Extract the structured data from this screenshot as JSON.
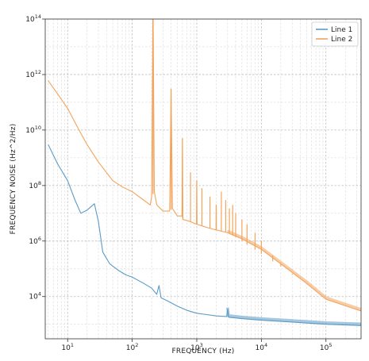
{
  "chart_data": {
    "type": "line",
    "xlabel": "FREQUENCY (Hz)",
    "ylabel": "FREQUENCY NOISE (Hz^2/Hz)",
    "x_scale": "log",
    "y_scale": "log",
    "xlim": [
      4.5,
      350000
    ],
    "ylim": [
      300,
      100000000000000
    ],
    "grid": true,
    "legend_position": "top-right",
    "x_ticks": [
      {
        "value": 10,
        "label": "10",
        "exp": "1"
      },
      {
        "value": 100,
        "label": "10",
        "exp": "2"
      },
      {
        "value": 1000,
        "label": "10",
        "exp": "3"
      },
      {
        "value": 10000,
        "label": "10",
        "exp": "4"
      },
      {
        "value": 100000,
        "label": "10",
        "exp": "5"
      }
    ],
    "y_ticks": [
      {
        "value": 10000,
        "label": "10",
        "exp": "4"
      },
      {
        "value": 1000000,
        "label": "10",
        "exp": "6"
      },
      {
        "value": 100000000,
        "label": "10",
        "exp": "8"
      },
      {
        "value": 10000000000,
        "label": "10",
        "exp": "10"
      },
      {
        "value": 1000000000000,
        "label": "10",
        "exp": "12"
      },
      {
        "value": 100000000000000,
        "label": "10",
        "exp": "14"
      }
    ],
    "series": [
      {
        "name": "Line 1",
        "color": "#5b9bc7",
        "points": [
          [
            5,
            3000000000
          ],
          [
            7,
            600000000
          ],
          [
            10,
            150000000
          ],
          [
            13,
            30000000
          ],
          [
            16,
            10000000
          ],
          [
            20,
            13000000
          ],
          [
            26,
            22000000
          ],
          [
            30,
            5000000
          ],
          [
            35,
            400000
          ],
          [
            45,
            150000
          ],
          [
            60,
            90000
          ],
          [
            80,
            60000
          ],
          [
            100,
            50000
          ],
          [
            150,
            30000
          ],
          [
            200,
            20000
          ],
          [
            240,
            12000
          ],
          [
            260,
            25000
          ],
          [
            280,
            9000
          ],
          [
            350,
            7000
          ],
          [
            500,
            4500
          ],
          [
            700,
            3200
          ],
          [
            1000,
            2500
          ],
          [
            2000,
            2000
          ],
          [
            2900,
            1900
          ],
          [
            3000,
            3500
          ],
          [
            3100,
            1800
          ],
          [
            5000,
            1600
          ],
          [
            10000,
            1400
          ],
          [
            30000,
            1200
          ],
          [
            100000,
            1000
          ],
          [
            350000,
            900
          ]
        ]
      },
      {
        "name": "Line 2",
        "color": "#f2a45c",
        "points": [
          [
            5,
            600000000000
          ],
          [
            7,
            200000000000
          ],
          [
            10,
            60000000000
          ],
          [
            15,
            10000000000
          ],
          [
            20,
            3000000000
          ],
          [
            30,
            700000000
          ],
          [
            50,
            150000000
          ],
          [
            70,
            90000000
          ],
          [
            100,
            60000000
          ],
          [
            150,
            30000000
          ],
          [
            190,
            20000000
          ],
          [
            200,
            40000000
          ],
          [
            210,
            500000000000000
          ],
          [
            220,
            60000000
          ],
          [
            240,
            20000000
          ],
          [
            300,
            12000000
          ],
          [
            380,
            12000000
          ],
          [
            400,
            300000000000
          ],
          [
            420,
            15000000
          ],
          [
            500,
            8000000
          ],
          [
            590,
            8000000
          ],
          [
            600,
            5000000000
          ],
          [
            610,
            6000000
          ],
          [
            800,
            5000000
          ],
          [
            990,
            4000000
          ],
          [
            1000,
            150000000
          ],
          [
            1010,
            4000000
          ],
          [
            1500,
            3000000
          ],
          [
            1990,
            2500000
          ],
          [
            2000,
            20000000
          ],
          [
            2010,
            2500000
          ],
          [
            3000,
            2000000
          ],
          [
            3500,
            1700000
          ],
          [
            5000,
            1200000
          ],
          [
            10000,
            500000
          ],
          [
            20000,
            150000
          ],
          [
            50000,
            30000
          ],
          [
            100000,
            8000
          ],
          [
            350000,
            3000
          ]
        ],
        "spikes": [
          [
            210,
            500000000000000
          ],
          [
            400,
            300000000000
          ],
          [
            600,
            5000000000
          ],
          [
            800,
            300000000
          ],
          [
            1000,
            150000000
          ],
          [
            1200,
            80000000
          ],
          [
            1600,
            40000000
          ],
          [
            2000,
            20000000
          ],
          [
            2400,
            60000000
          ],
          [
            2800,
            30000000
          ],
          [
            3200,
            15000000
          ],
          [
            3600,
            20000000
          ],
          [
            4000,
            10000000
          ],
          [
            5000,
            6000000
          ],
          [
            6000,
            4000000
          ],
          [
            8000,
            2000000
          ],
          [
            10000,
            1000000
          ],
          [
            15000,
            300000
          ],
          [
            20000,
            150000
          ],
          [
            30000,
            60000
          ]
        ]
      }
    ]
  }
}
